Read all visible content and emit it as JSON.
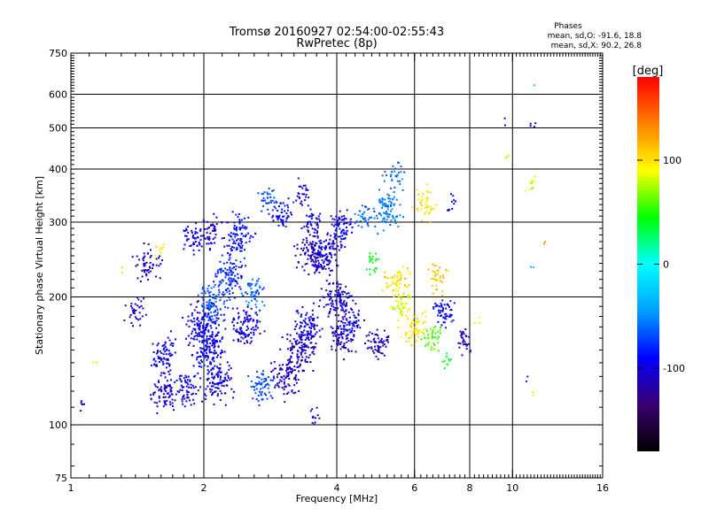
{
  "chart_data": {
    "type": "scatter",
    "title": "Tromsø 20160927 02:54:00-02:55:43",
    "subtitle": "RwPretec (8p)",
    "xlabel": "Frequency [MHz]",
    "ylabel": "Stationary phase Virtual Height [km]",
    "x_scale": "log",
    "y_scale": "log",
    "xlim": [
      1,
      16
    ],
    "ylim": [
      75,
      750
    ],
    "x_ticks": [
      1,
      2,
      4,
      6,
      8,
      10,
      16
    ],
    "y_ticks": [
      75,
      100,
      200,
      300,
      400,
      500,
      600,
      750
    ],
    "x_major_grid": [
      2,
      4,
      6,
      8,
      10
    ],
    "y_major_grid": [
      100,
      200,
      300,
      400,
      500,
      600
    ],
    "grid": true,
    "stats_header": "Phases",
    "stats_lines": [
      "mean, sd,O: -91.6, 18.8",
      "mean, sd,X: 90.2, 26.8"
    ],
    "colorbar": {
      "label": "[deg]",
      "range": [
        -180,
        180
      ],
      "ticks": [
        -100,
        0,
        100
      ],
      "colormap": [
        "#000000",
        "#3a0070",
        "#0000ff",
        "#00a0ff",
        "#00ffff",
        "#00ff00",
        "#ffff00",
        "#ff8000",
        "#ff0000"
      ]
    },
    "series": [
      {
        "values": [
          {
            "x": 1.05,
            "y": 112,
            "c": -100,
            "n": 6
          },
          {
            "x": 1.15,
            "y": 140,
            "c": 90,
            "n": 3
          },
          {
            "x": 1.3,
            "y": 235,
            "c": 100,
            "n": 2
          },
          {
            "x": 1.4,
            "y": 185,
            "c": -105,
            "n": 35
          },
          {
            "x": 1.5,
            "y": 240,
            "c": -110,
            "n": 55
          },
          {
            "x": 1.55,
            "y": 140,
            "c": -100,
            "n": 10
          },
          {
            "x": 1.6,
            "y": 260,
            "c": 100,
            "n": 8
          },
          {
            "x": 1.65,
            "y": 148,
            "c": -100,
            "n": 60
          },
          {
            "x": 1.65,
            "y": 121,
            "c": -105,
            "n": 80
          },
          {
            "x": 1.82,
            "y": 122,
            "c": -100,
            "n": 60
          },
          {
            "x": 1.9,
            "y": 275,
            "c": -95,
            "n": 50
          },
          {
            "x": 2.0,
            "y": 170,
            "c": -100,
            "n": 150
          },
          {
            "x": 2.05,
            "y": 150,
            "c": -95,
            "n": 120
          },
          {
            "x": 2.08,
            "y": 285,
            "c": -100,
            "n": 50
          },
          {
            "x": 2.1,
            "y": 192,
            "c": -65,
            "n": 80
          },
          {
            "x": 2.15,
            "y": 128,
            "c": -100,
            "n": 100
          },
          {
            "x": 2.3,
            "y": 225,
            "c": -80,
            "n": 100
          },
          {
            "x": 2.4,
            "y": 280,
            "c": -90,
            "n": 90
          },
          {
            "x": 2.5,
            "y": 170,
            "c": -100,
            "n": 100
          },
          {
            "x": 2.6,
            "y": 205,
            "c": -60,
            "n": 50
          },
          {
            "x": 2.7,
            "y": 122,
            "c": -70,
            "n": 60
          },
          {
            "x": 2.8,
            "y": 340,
            "c": -70,
            "n": 30
          },
          {
            "x": 3.0,
            "y": 310,
            "c": -90,
            "n": 50
          },
          {
            "x": 3.05,
            "y": 130,
            "c": -110,
            "n": 90
          },
          {
            "x": 3.3,
            "y": 150,
            "c": -110,
            "n": 100
          },
          {
            "x": 3.45,
            "y": 170,
            "c": -100,
            "n": 90
          },
          {
            "x": 3.35,
            "y": 350,
            "c": -100,
            "n": 25
          },
          {
            "x": 3.5,
            "y": 300,
            "c": -100,
            "n": 40
          },
          {
            "x": 3.55,
            "y": 250,
            "c": -110,
            "n": 120
          },
          {
            "x": 3.55,
            "y": 106,
            "c": -105,
            "n": 12
          },
          {
            "x": 3.8,
            "y": 255,
            "c": -100,
            "n": 80
          },
          {
            "x": 4.1,
            "y": 290,
            "c": -95,
            "n": 70
          },
          {
            "x": 4.0,
            "y": 200,
            "c": -105,
            "n": 100
          },
          {
            "x": 4.1,
            "y": 160,
            "c": -110,
            "n": 70
          },
          {
            "x": 4.3,
            "y": 175,
            "c": -100,
            "n": 60
          },
          {
            "x": 4.6,
            "y": 310,
            "c": -60,
            "n": 30
          },
          {
            "x": 4.8,
            "y": 240,
            "c": 40,
            "n": 20
          },
          {
            "x": 5.0,
            "y": 155,
            "c": -110,
            "n": 60
          },
          {
            "x": 5.2,
            "y": 320,
            "c": -55,
            "n": 90
          },
          {
            "x": 5.5,
            "y": 215,
            "c": 100,
            "n": 60
          },
          {
            "x": 5.6,
            "y": 190,
            "c": 80,
            "n": 40
          },
          {
            "x": 5.4,
            "y": 380,
            "c": -60,
            "n": 30
          },
          {
            "x": 6.0,
            "y": 170,
            "c": 100,
            "n": 60
          },
          {
            "x": 6.3,
            "y": 330,
            "c": 100,
            "n": 40
          },
          {
            "x": 6.5,
            "y": 160,
            "c": 60,
            "n": 40
          },
          {
            "x": 6.8,
            "y": 220,
            "c": 110,
            "n": 35
          },
          {
            "x": 7.0,
            "y": 185,
            "c": -90,
            "n": 50
          },
          {
            "x": 7.0,
            "y": 140,
            "c": 40,
            "n": 10
          },
          {
            "x": 7.3,
            "y": 330,
            "c": -90,
            "n": 10
          },
          {
            "x": 7.8,
            "y": 158,
            "c": -110,
            "n": 30
          },
          {
            "x": 8.3,
            "y": 175,
            "c": 90,
            "n": 3
          },
          {
            "x": 9.8,
            "y": 430,
            "c": 100,
            "n": 3
          },
          {
            "x": 9.7,
            "y": 520,
            "c": -100,
            "n": 2
          },
          {
            "x": 11.0,
            "y": 370,
            "c": 80,
            "n": 10
          },
          {
            "x": 11.1,
            "y": 500,
            "c": -100,
            "n": 4
          },
          {
            "x": 11.2,
            "y": 630,
            "c": 50,
            "n": 1
          },
          {
            "x": 11.0,
            "y": 240,
            "c": -40,
            "n": 2
          },
          {
            "x": 11.0,
            "y": 130,
            "c": -80,
            "n": 2
          },
          {
            "x": 11.0,
            "y": 118,
            "c": 100,
            "n": 2
          },
          {
            "x": 11.8,
            "y": 265,
            "c": 130,
            "n": 2
          }
        ]
      }
    ]
  }
}
